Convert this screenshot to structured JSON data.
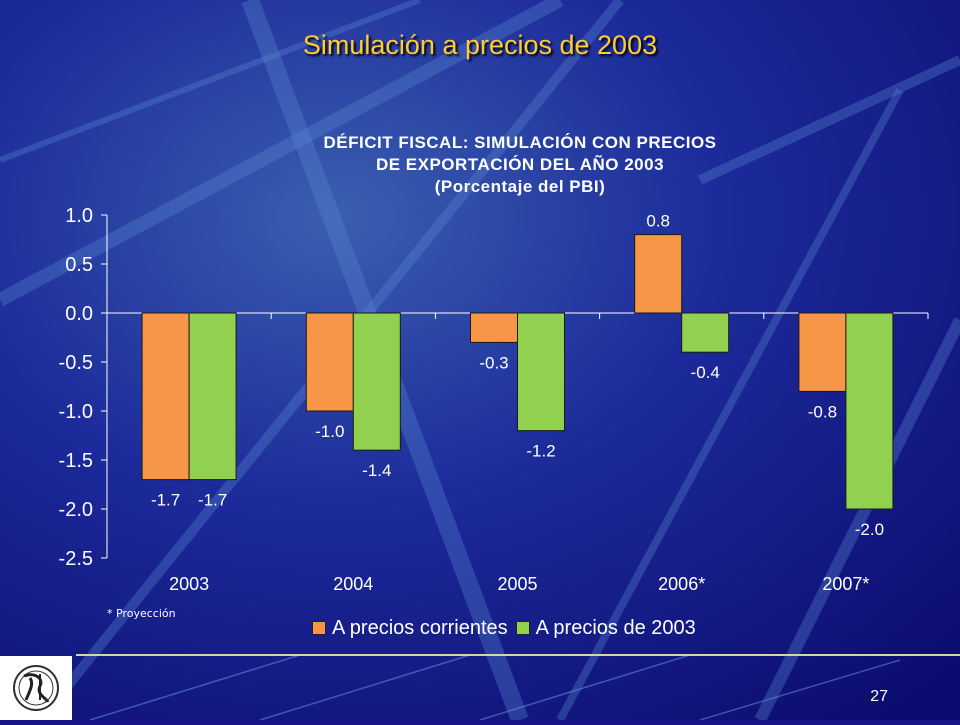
{
  "slide": {
    "title": "Simulación a precios de 2003",
    "footnote": "* Proyección",
    "page_number": "27"
  },
  "colors": {
    "background": "#16168a",
    "title": "#ffcc33",
    "series1": "#f79646",
    "series2": "#92d050"
  },
  "chart_data": {
    "type": "bar",
    "title": [
      "DÉFICIT FISCAL: SIMULACIÓN CON PRECIOS",
      "DE EXPORTACIÓN DEL AÑO 2003",
      "(Porcentaje del PBI)"
    ],
    "categories": [
      "2003",
      "2004",
      "2005",
      "2006*",
      "2007*"
    ],
    "series": [
      {
        "name": "A precios corrientes",
        "values": [
          -1.7,
          -1.0,
          -0.3,
          0.8,
          -0.8
        ]
      },
      {
        "name": "A precios de 2003",
        "values": [
          -1.7,
          -1.4,
          -1.2,
          -0.4,
          -2.0
        ]
      }
    ],
    "data_labels": [
      [
        "-1.7",
        "-1.0",
        "-0.3",
        "0.8",
        "-0.8"
      ],
      [
        "-1.7",
        "-1.4",
        "-1.2",
        "-0.4",
        "-2.0"
      ]
    ],
    "ylim": [
      -2.5,
      1.0
    ],
    "yticks": [
      1.0,
      0.5,
      0.0,
      -0.5,
      -1.0,
      -1.5,
      -2.0,
      -2.5
    ],
    "ytick_labels": [
      "1.0",
      "0.5",
      "0.0",
      "-0.5",
      "-1.0",
      "-1.5",
      "-2.0",
      "-2.5"
    ],
    "legend": "bottom",
    "grid": false
  }
}
